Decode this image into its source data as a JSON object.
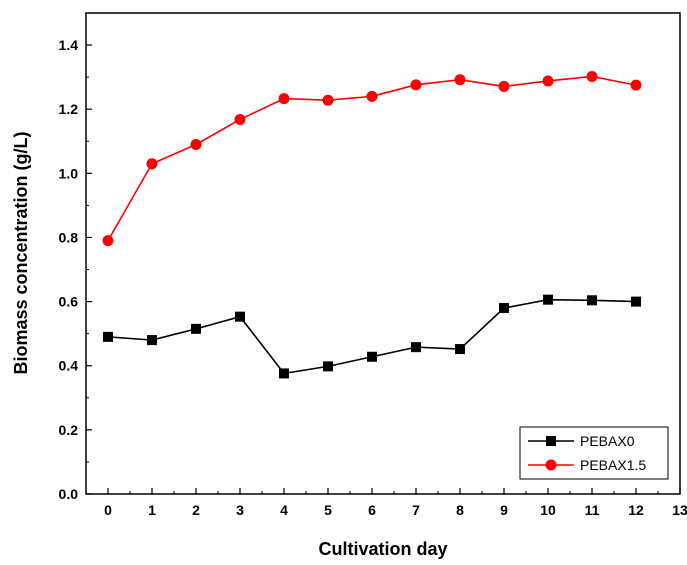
{
  "chart_data": {
    "type": "line",
    "title": "",
    "xlabel": "Cultivation day",
    "ylabel": "Biomass concentration (g/L)",
    "xlim": [
      -0.5,
      13
    ],
    "ylim": [
      0.0,
      1.5
    ],
    "x_ticks": [
      0,
      1,
      2,
      3,
      4,
      5,
      6,
      7,
      8,
      9,
      10,
      11,
      12,
      13
    ],
    "y_ticks": [
      0.0,
      0.2,
      0.4,
      0.6,
      0.8,
      1.0,
      1.2,
      1.4
    ],
    "legend_position": "bottom-right",
    "grid": false,
    "x": [
      0,
      1,
      2,
      3,
      4,
      5,
      6,
      7,
      8,
      9,
      10,
      11,
      12
    ],
    "series": [
      {
        "name": "PEBAX0",
        "color": "#000000",
        "marker": "square",
        "values": [
          0.49,
          0.48,
          0.515,
          0.553,
          0.376,
          0.398,
          0.428,
          0.458,
          0.452,
          0.58,
          0.606,
          0.604,
          0.6
        ]
      },
      {
        "name": "PEBAX1.5",
        "color": "#ff0000",
        "marker": "circle",
        "values": [
          0.79,
          1.03,
          1.09,
          1.168,
          1.233,
          1.228,
          1.24,
          1.276,
          1.292,
          1.271,
          1.288,
          1.302,
          1.275
        ]
      }
    ]
  }
}
